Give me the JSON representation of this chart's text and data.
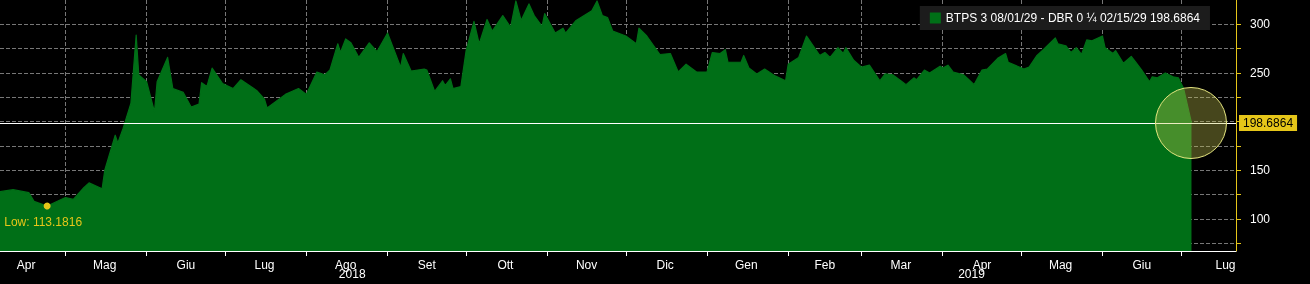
{
  "chart_data": {
    "type": "area",
    "legend": "top right",
    "grid": true,
    "marker": "none",
    "xlim": [
      "2018-04-06",
      "2019-07-22"
    ],
    "xticks": [
      {
        "value": "2018-04-16",
        "label": "Apr"
      },
      {
        "value": "2018-05-01",
        "label": null
      },
      {
        "value": "2018-05-16",
        "label": "Mag"
      },
      {
        "value": "2018-06-01",
        "label": null
      },
      {
        "value": "2018-06-16",
        "label": "Giu"
      },
      {
        "value": "2018-07-01",
        "label": null
      },
      {
        "value": "2018-07-16",
        "label": "Lug"
      },
      {
        "value": "2018-08-01",
        "label": null
      },
      {
        "value": "2018-08-16",
        "label": "Ago"
      },
      {
        "value": "2018-09-01",
        "label": null
      },
      {
        "value": "2018-09-16",
        "label": "Set"
      },
      {
        "value": "2018-10-01",
        "label": null
      },
      {
        "value": "2018-10-16",
        "label": "Ott"
      },
      {
        "value": "2018-11-01",
        "label": null
      },
      {
        "value": "2018-11-16",
        "label": "Nov"
      },
      {
        "value": "2018-12-01",
        "label": null
      },
      {
        "value": "2018-12-16",
        "label": "Dic"
      },
      {
        "value": "2019-01-01",
        "label": null
      },
      {
        "value": "2019-01-16",
        "label": "Gen"
      },
      {
        "value": "2019-02-01",
        "label": null
      },
      {
        "value": "2019-02-15",
        "label": "Feb"
      },
      {
        "value": "2019-03-01",
        "label": null
      },
      {
        "value": "2019-03-16",
        "label": "Mar"
      },
      {
        "value": "2019-04-01",
        "label": null
      },
      {
        "value": "2019-04-16",
        "label": "Apr"
      },
      {
        "value": "2019-05-01",
        "label": null
      },
      {
        "value": "2019-05-16",
        "label": "Mag"
      },
      {
        "value": "2019-06-01",
        "label": null
      },
      {
        "value": "2019-06-16",
        "label": "Giu"
      },
      {
        "value": "2019-07-01",
        "label": null
      },
      {
        "value": "2019-07-18",
        "label": "Lug"
      }
    ],
    "ylim": [
      67,
      325
    ],
    "yticks": [
      {
        "value": 75,
        "label": null
      },
      100,
      {
        "value": 125,
        "label": null
      },
      150,
      {
        "value": 175,
        "label": null
      },
      {
        "value": 200,
        "label": null
      },
      {
        "value": 225,
        "label": null
      },
      250,
      {
        "value": 275,
        "label": null
      },
      300
    ],
    "ref_lines": [
      {
        "axis": "y",
        "value": 198.6864,
        "label": "198.6864",
        "color": "#ffffff"
      }
    ],
    "annotations": [
      {
        "text": "Low: 113.1816",
        "x": "2018-04-24",
        "y": 113.1816
      },
      "2018",
      "2019"
    ],
    "series": [
      {
        "name": "BTPS 3 08/01/29 - DBR 0 ¼ 02/15/29 198.6864",
        "color": "#006f17",
        "x": [
          "2018-04-06",
          "2018-04-11",
          "2018-04-17",
          "2018-04-19",
          "2018-04-24",
          "2018-05-01",
          "2018-05-04",
          "2018-05-08",
          "2018-05-10",
          "2018-05-15",
          "2018-05-16",
          "2018-05-20",
          "2018-05-21",
          "2018-05-23",
          "2018-05-26",
          "2018-05-28",
          "2018-05-29",
          "2018-06-01",
          "2018-06-04",
          "2018-06-05",
          "2018-06-09",
          "2018-06-11",
          "2018-06-15",
          "2018-06-18",
          "2018-06-21",
          "2018-06-22",
          "2018-06-24",
          "2018-06-26",
          "2018-06-30",
          "2018-07-04",
          "2018-07-07",
          "2018-07-13",
          "2018-07-16",
          "2018-07-17",
          "2018-07-24",
          "2018-07-29",
          "2018-08-01",
          "2018-08-05",
          "2018-08-08",
          "2018-08-10",
          "2018-08-13",
          "2018-08-14",
          "2018-08-16",
          "2018-08-18",
          "2018-08-21",
          "2018-08-25",
          "2018-08-28",
          "2018-09-01",
          "2018-09-06",
          "2018-09-07",
          "2018-09-10",
          "2018-09-15",
          "2018-09-16",
          "2018-09-19",
          "2018-09-22",
          "2018-09-23",
          "2018-09-25",
          "2018-09-26",
          "2018-09-29",
          "2018-10-01",
          "2018-10-04",
          "2018-10-06",
          "2018-10-09",
          "2018-10-11",
          "2018-10-15",
          "2018-10-18",
          "2018-10-20",
          "2018-10-22",
          "2018-10-25",
          "2018-10-27",
          "2018-10-30",
          "2018-10-31",
          "2018-11-04",
          "2018-11-07",
          "2018-11-08",
          "2018-11-12",
          "2018-11-18",
          "2018-11-20",
          "2018-11-22",
          "2018-11-24",
          "2018-11-26",
          "2018-12-01",
          "2018-12-05",
          "2018-12-06",
          "2018-12-09",
          "2018-12-14",
          "2018-12-18",
          "2018-12-21",
          "2018-12-24",
          "2018-12-28",
          "2019-01-01",
          "2019-01-03",
          "2019-01-06",
          "2019-01-08",
          "2019-01-09",
          "2019-01-14",
          "2019-01-15",
          "2019-01-17",
          "2019-01-20",
          "2019-01-23",
          "2019-01-27",
          "2019-01-31",
          "2019-02-01",
          "2019-02-05",
          "2019-02-08",
          "2019-02-13",
          "2019-02-15",
          "2019-02-17",
          "2019-02-20",
          "2019-02-22",
          "2019-02-23",
          "2019-02-26",
          "2019-03-01",
          "2019-03-04",
          "2019-03-08",
          "2019-03-10",
          "2019-03-13",
          "2019-03-16",
          "2019-03-18",
          "2019-03-21",
          "2019-03-22",
          "2019-03-25",
          "2019-03-27",
          "2019-03-31",
          "2019-04-01",
          "2019-04-03",
          "2019-04-05",
          "2019-04-09",
          "2019-04-11",
          "2019-04-13",
          "2019-04-16",
          "2019-04-18",
          "2019-04-22",
          "2019-04-25",
          "2019-04-26",
          "2019-05-02",
          "2019-05-04",
          "2019-05-07",
          "2019-05-09",
          "2019-05-14",
          "2019-05-15",
          "2019-05-18",
          "2019-05-20",
          "2019-05-22",
          "2019-05-24",
          "2019-05-26",
          "2019-05-28",
          "2019-06-01",
          "2019-06-02",
          "2019-06-05",
          "2019-06-06",
          "2019-06-09",
          "2019-06-12",
          "2019-06-14",
          "2019-06-16",
          "2019-06-19",
          "2019-06-20",
          "2019-06-22",
          "2019-06-25",
          "2019-06-28",
          "2019-06-30",
          "2019-07-02",
          "2019-07-05"
        ],
        "values": [
          128,
          130,
          127,
          118,
          113.1816,
          122,
          120,
          132,
          137,
          131,
          150,
          186,
          178,
          193,
          219,
          289,
          248,
          241,
          210,
          241,
          266,
          234,
          230,
          215,
          218,
          240,
          236,
          255,
          239,
          234,
          243,
          232,
          223,
          214,
          228,
          234,
          228,
          251,
          248,
          253,
          280,
          271,
          285,
          281,
          266,
          281,
          272,
          291,
          256,
          270,
          252,
          254,
          253,
          231,
          242,
          237,
          244,
          234,
          236,
          273,
          303,
          280,
          305,
          293,
          309,
          297,
          324,
          304,
          321,
          309,
          298,
          311,
          291,
          296,
          291,
          304,
          314,
          324,
          309,
          307,
          293,
          288,
          280,
          296,
          288,
          269,
          270,
          251,
          259,
          251,
          251,
          271,
          270,
          274,
          261,
          261,
          268,
          255,
          249,
          254,
          247,
          242,
          259,
          266,
          288,
          268,
          271,
          266,
          276,
          270,
          276,
          263,
          256,
          258,
          242,
          249,
          248,
          242,
          238,
          245,
          243,
          253,
          250,
          257,
          255,
          258,
          251,
          248,
          243,
          238,
          253,
          254,
          265,
          270,
          261,
          254,
          256,
          268,
          273,
          286,
          280,
          278,
          271,
          276,
          269,
          284,
          283,
          288,
          276,
          270,
          273,
          260,
          267,
          260,
          253,
          241,
          246,
          245,
          250,
          246,
          245,
          234,
          198.6864
        ]
      }
    ]
  }
}
